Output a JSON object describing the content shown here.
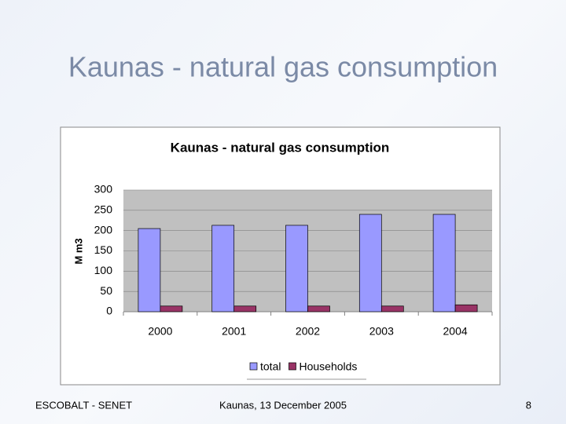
{
  "slide": {
    "title": "Kaunas - natural gas consumption",
    "footer_left": "ESCOBALT - SENET",
    "footer_center": "Kaunas, 13 December 2005",
    "page_number": "8"
  },
  "chart_data": {
    "type": "bar",
    "title": "Kaunas - natural gas consumption",
    "y_label": "M m3",
    "categories": [
      "2000",
      "2001",
      "2002",
      "2003",
      "2004"
    ],
    "series": [
      {
        "name": "total",
        "color": "#9999ff",
        "values": [
          205,
          213,
          213,
          240,
          240
        ]
      },
      {
        "name": "Households",
        "color": "#993366",
        "values": [
          14,
          14,
          14,
          14,
          17
        ]
      }
    ],
    "ylim": [
      0,
      300
    ],
    "yticks": [
      0,
      50,
      100,
      150,
      200,
      250,
      300
    ],
    "grid": true,
    "legend": "bottom"
  }
}
